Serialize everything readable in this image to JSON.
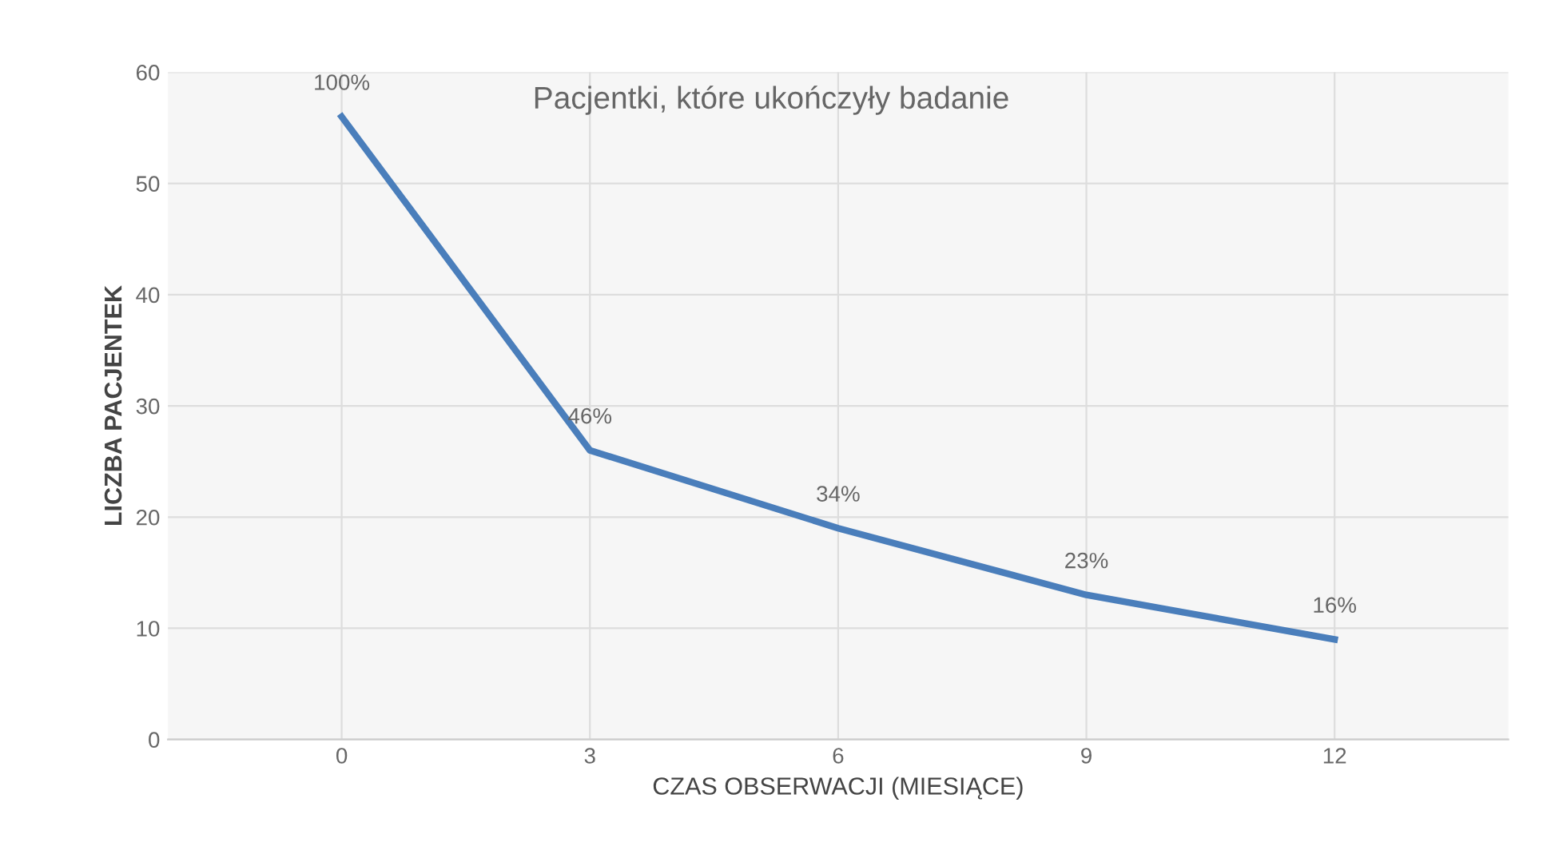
{
  "chart_data": {
    "type": "line",
    "title": "Pacjentki, które ukończyły badanie",
    "xlabel": "CZAS OBSERWACJI (MIESIĄCE)",
    "ylabel": "LICZBA PACJENTEK",
    "categories": [
      "0",
      "3",
      "6",
      "9",
      "12"
    ],
    "series": [
      {
        "color": "#4a7ebb",
        "values": [
          56,
          26,
          19,
          13,
          9
        ]
      }
    ],
    "annotations": [
      {
        "text": "100%",
        "x": "0",
        "y": 56
      },
      {
        "text": "46%",
        "x": "3",
        "y": 26
      },
      {
        "text": "34%",
        "x": "6",
        "y": 19
      },
      {
        "text": "23%",
        "x": "9",
        "y": 13
      },
      {
        "text": "16%",
        "x": "12",
        "y": 9
      }
    ],
    "ylim": [
      0,
      60
    ],
    "yticks": [
      0,
      10,
      20,
      30,
      40,
      50,
      60
    ],
    "grid": true,
    "legend": false,
    "marker": "none",
    "line_style": "solid"
  }
}
